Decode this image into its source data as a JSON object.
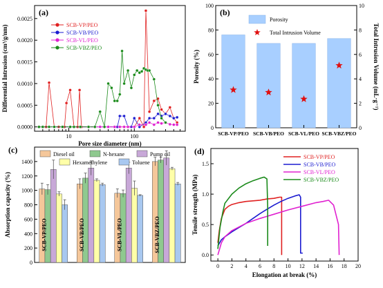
{
  "figure": {
    "panel_labels": [
      "(a)",
      "(b)",
      "(c)",
      "(d)"
    ]
  },
  "chart_data": [
    {
      "panel": "(a)",
      "type": "line",
      "xlabel": "Pore size diameter (nm)",
      "ylabel": "Differential Intrusion (cm³/g/nm)",
      "xscale": "log",
      "xlim": [
        3,
        600
      ],
      "ylim": [
        -0.0001,
        0.0028
      ],
      "x_ticks": [
        "10",
        "100"
      ],
      "y_ticks": [
        "0.0000",
        "0.0005",
        "0.0010",
        "0.0015",
        "0.0020",
        "0.0025"
      ],
      "legend_position": "top-left",
      "series": [
        {
          "name": "SCB-VP/PEO",
          "color": "#e02020",
          "marker": "circle",
          "x": [
            3.5,
            4.0,
            4.5,
            5.0,
            6.0,
            7.0,
            8.0,
            8.6,
            9.2,
            10.5,
            12,
            13.6,
            14.6,
            15.6,
            20,
            25,
            30,
            40,
            50,
            60,
            70,
            80,
            100,
            120,
            140,
            150,
            170,
            200,
            230,
            260,
            300,
            350,
            400,
            450
          ],
          "y": [
            0,
            0,
            0,
            0.00102,
            0,
            0,
            0,
            0,
            0.00055,
            0.00085,
            0,
            0,
            0.00085,
            0,
            0,
            0,
            0,
            0,
            0,
            0,
            0,
            0,
            0,
            0.0002,
            0.0,
            0.00268,
            0.00035,
            0.0006,
            0.00065,
            0.0004,
            0.0003,
            0.00045,
            0.0002,
            0.0001
          ]
        },
        {
          "name": "SCB-VB/PEO",
          "color": "#1a1ad0",
          "marker": "circle",
          "x": [
            3.5,
            4.0,
            5.0,
            6.0,
            8.0,
            10.5,
            12,
            15,
            20,
            25,
            30,
            40,
            50,
            55,
            60,
            70,
            80,
            90,
            100,
            120,
            150,
            170,
            200,
            230,
            260,
            300,
            350,
            400,
            450
          ],
          "y": [
            0,
            0,
            0,
            0,
            0,
            0,
            0,
            0,
            0,
            0,
            0,
            0,
            0,
            0,
            0.00025,
            0.00025,
            0,
            0,
            0.0002,
            0,
            0.0001,
            0.0002,
            0.0002,
            0.0003,
            0.00025,
            0.0003,
            0.00025,
            0.0002,
            0.00022
          ]
        },
        {
          "name": "SCB-VL/PEO",
          "color": "#e020d0",
          "marker": "circle",
          "x": [
            3.5,
            4.0,
            5.0,
            6.0,
            8.0,
            10.5,
            12,
            15,
            20,
            25,
            30,
            40,
            50,
            60,
            70,
            80,
            100,
            120,
            150,
            170,
            200,
            230,
            260,
            300,
            350,
            400,
            450
          ],
          "y": [
            0,
            0,
            0,
            0,
            0,
            0,
            0,
            0,
            0,
            0,
            0,
            0,
            0,
            0,
            0,
            0,
            0,
            5e-05,
            5e-05,
            0.0001,
            5e-05,
            0.0001,
            8e-05,
            0.0001,
            6e-05,
            5e-05,
            5e-05
          ]
        },
        {
          "name": "SCB-VBZ/PEO",
          "color": "#1a8a1a",
          "marker": "circle",
          "x": [
            3.5,
            4.0,
            5.0,
            6.0,
            8.0,
            10.5,
            12,
            15,
            20,
            25,
            30,
            35,
            40,
            45,
            50,
            55,
            60,
            65,
            70,
            80,
            90,
            100,
            110,
            120,
            130,
            140,
            150,
            160,
            170,
            200,
            230,
            260,
            300
          ],
          "y": [
            0,
            0,
            0,
            0,
            0,
            0,
            0,
            0,
            0,
            0,
            0.00035,
            0,
            0.001,
            0.0009,
            0.0006,
            0.0006,
            0.00075,
            0.00175,
            0.001,
            0.0013,
            0.0009,
            0.0012,
            0.0013,
            0.00125,
            0.00128,
            0.00135,
            0.00132,
            0.0013,
            0.0013,
            0.0011,
            0.0005,
            0.0002,
            0.0001
          ]
        }
      ]
    },
    {
      "panel": "(b)",
      "type": "bar",
      "categories": [
        "SCB-VP/PEO",
        "SCB-VB/PEO",
        "SCB-VL/PEO",
        "SCB-VBZ/PEO"
      ],
      "ylabel": "Porosity (%)",
      "y2label": "Total Intrusion Volume (mL·g⁻¹)",
      "ylim": [
        0,
        100
      ],
      "y2lim": [
        0,
        10
      ],
      "y_ticks": [
        "0",
        "20",
        "40",
        "60",
        "80",
        "100"
      ],
      "y2_ticks": [
        "0",
        "2",
        "4",
        "6",
        "8",
        "10"
      ],
      "legend_position": "top-center",
      "series": [
        {
          "name": "Porosity",
          "type": "bar",
          "color": "#a8cfff",
          "values": [
            76,
            69,
            69,
            73
          ]
        },
        {
          "name": "Total Intrusion Volume",
          "type": "scatter",
          "marker": "star",
          "color": "#e01010",
          "axis": "right",
          "values": [
            3.1,
            2.9,
            2.35,
            5.1
          ]
        }
      ]
    },
    {
      "panel": "(c)",
      "type": "bar",
      "categories": [
        "SCB-VP/PEO",
        "SCB-VB/PEO",
        "SCB-VL/PEO",
        "SCB-VBZ/PEO"
      ],
      "ylabel": "Absorption capacity (%)",
      "ylim": [
        0,
        1600
      ],
      "y_ticks": [
        "0",
        "200",
        "400",
        "600",
        "800",
        "1000",
        "1200",
        "1400"
      ],
      "legend_position": "top",
      "series": [
        {
          "name": "Diesel oil",
          "color": "#f5c79a",
          "values": [
            1020,
            1090,
            960,
            1400
          ],
          "errors": [
            80,
            70,
            60,
            60
          ]
        },
        {
          "name": "N-hexane",
          "color": "#8fc98f",
          "values": [
            1010,
            1170,
            955,
            1420
          ],
          "errors": [
            70,
            70,
            50,
            40
          ]
        },
        {
          "name": "Pump oil",
          "color": "#c8a8d8",
          "values": [
            1290,
            1310,
            1310,
            1450
          ],
          "errors": [
            130,
            100,
            80,
            100
          ]
        },
        {
          "name": "Hexamethylene",
          "color": "#ffffa8",
          "values": [
            950,
            1140,
            1030,
            1300
          ],
          "errors": [
            30,
            20,
            100,
            20
          ]
        },
        {
          "name": "Toluene",
          "color": "#a8c8f0",
          "values": [
            800,
            1080,
            930,
            1090
          ],
          "errors": [
            70,
            20,
            10,
            20
          ]
        }
      ]
    },
    {
      "panel": "(d)",
      "type": "line",
      "xlabel": "Elongation at break (%)",
      "ylabel": "Tensile strength (MPa)",
      "xlim": [
        -1,
        20
      ],
      "ylim": [
        -0.1,
        1.75
      ],
      "x_ticks": [
        "0",
        "2",
        "4",
        "6",
        "8",
        "10",
        "12",
        "14",
        "16",
        "18",
        "20"
      ],
      "y_ticks": [
        "0.0",
        "0.5",
        "1.0",
        "1.5"
      ],
      "legend_position": "top-right",
      "series": [
        {
          "name": "SCB-VP/PEO",
          "color": "#e02020",
          "x": [
            0,
            0.2,
            0.5,
            1,
            1.5,
            2,
            3,
            4,
            5,
            6,
            7,
            8,
            8.8,
            9.1,
            9.1
          ],
          "y": [
            0.2,
            0.4,
            0.6,
            0.75,
            0.8,
            0.83,
            0.86,
            0.88,
            0.89,
            0.9,
            0.92,
            0.93,
            0.95,
            0.95,
            0.0
          ]
        },
        {
          "name": "SCB-VB/PEO",
          "color": "#1a1ad0",
          "x": [
            0,
            0.5,
            1,
            2,
            3,
            4,
            5,
            6,
            7,
            8,
            9,
            10,
            11,
            11.6,
            11.8,
            11.8,
            12.1
          ],
          "y": [
            0.15,
            0.25,
            0.3,
            0.38,
            0.45,
            0.52,
            0.6,
            0.68,
            0.75,
            0.82,
            0.88,
            0.93,
            0.97,
            0.99,
            0.95,
            0.03,
            0.03
          ]
        },
        {
          "name": "SCB-VL/PEO",
          "color": "#e020d0",
          "x": [
            0,
            0.5,
            1,
            2,
            4,
            6,
            8,
            10,
            12,
            14,
            15,
            15.8,
            16.5,
            17.2,
            17.3
          ],
          "y": [
            0.0,
            0.2,
            0.3,
            0.4,
            0.52,
            0.6,
            0.67,
            0.74,
            0.8,
            0.86,
            0.88,
            0.9,
            0.82,
            0.5,
            0.0
          ]
        },
        {
          "name": "SCB-VBZ/PEO",
          "color": "#1a8a1a",
          "x": [
            0,
            0.3,
            0.7,
            1,
            2,
            3,
            4,
            5,
            6,
            6.6,
            7,
            7.1,
            7.1
          ],
          "y": [
            0.1,
            0.45,
            0.7,
            0.85,
            1.0,
            1.1,
            1.17,
            1.22,
            1.26,
            1.28,
            1.25,
            0.8,
            0.15
          ]
        }
      ]
    }
  ]
}
